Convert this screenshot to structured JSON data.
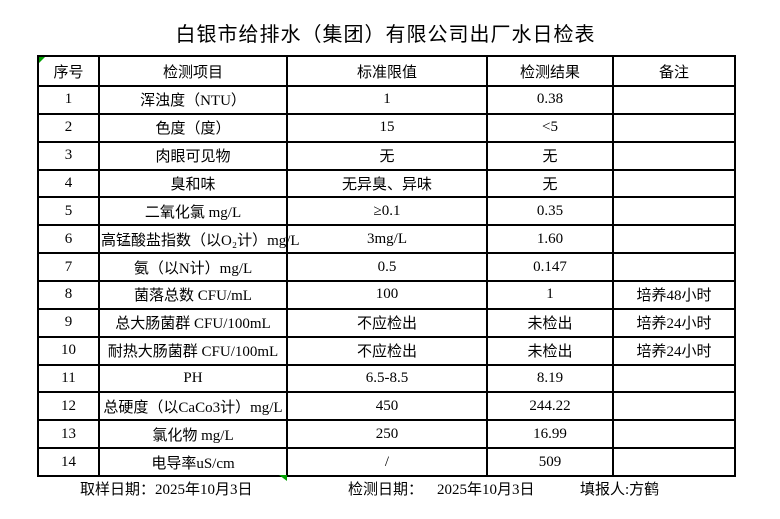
{
  "title": "白银市给排水（集团）有限公司出厂水日检表",
  "table": {
    "headers": [
      "序号",
      "检测项目",
      "标准限值",
      "检测结果",
      "备注"
    ],
    "rows": [
      {
        "no": "1",
        "item": "浑浊度（NTU）",
        "limit": "1",
        "result": "0.38",
        "note": ""
      },
      {
        "no": "2",
        "item": "色度（度）",
        "limit": "15",
        "result": "<5",
        "note": ""
      },
      {
        "no": "3",
        "item": "肉眼可见物",
        "limit": "无",
        "result": "无",
        "note": ""
      },
      {
        "no": "4",
        "item": "臭和味",
        "limit": "无异臭、异味",
        "result": "无",
        "note": ""
      },
      {
        "no": "5",
        "item": "二氧化氯 mg/L",
        "limit": "≥0.1",
        "result": "0.35",
        "note": ""
      },
      {
        "no": "6",
        "item": "高锰酸盐指数（以O₂计）mg/L",
        "limit": "3mg/L",
        "result": "1.60",
        "note": ""
      },
      {
        "no": "7",
        "item": "氨（以N计）mg/L",
        "limit": "0.5",
        "result": "0.147",
        "note": ""
      },
      {
        "no": "8",
        "item": "菌落总数 CFU/mL",
        "limit": "100",
        "result": "1",
        "note": "培养48小时"
      },
      {
        "no": "9",
        "item": "总大肠菌群 CFU/100mL",
        "limit": "不应检出",
        "result": "未检出",
        "note": "培养24小时"
      },
      {
        "no": "10",
        "item": "耐热大肠菌群 CFU/100mL",
        "limit": "不应检出",
        "result": "未检出",
        "note": "培养24小时"
      },
      {
        "no": "11",
        "item": "PH",
        "limit": "6.5-8.5",
        "result": "8.19",
        "note": ""
      },
      {
        "no": "12",
        "item": "总硬度（以CaCo3计）mg/L",
        "limit": "450",
        "result": "244.22",
        "note": ""
      },
      {
        "no": "13",
        "item": "氯化物 mg/L",
        "limit": "250",
        "result": "16.99",
        "note": ""
      },
      {
        "no": "14",
        "item": "电导率uS/cm",
        "limit": "/",
        "result": "509",
        "note": ""
      }
    ]
  },
  "footer": {
    "sample_date_label": "取样日期：",
    "sample_date": "2025年10月3日",
    "test_date_label": "检测日期：",
    "test_date": "2025年10月3日",
    "reporter_label": "填报人:",
    "reporter": "方鹤"
  },
  "colors": {
    "marker_green": "#00A000",
    "border": "#000000",
    "text": "#000000",
    "background": "#FFFFFF"
  }
}
